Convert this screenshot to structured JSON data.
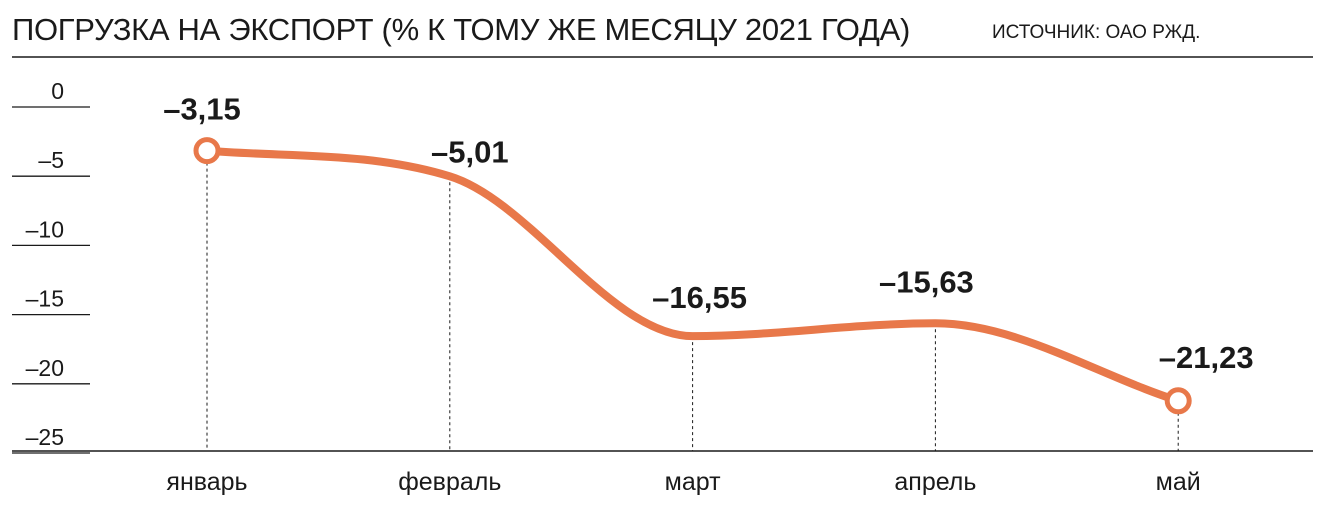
{
  "chart_data": {
    "type": "line",
    "title": "ПОГРУЗКА НА ЭКСПОРТ (% К ТОМУ ЖЕ МЕСЯЦУ 2021 ГОДА)",
    "source": "ИСТОЧНИК: ОАО РЖД.",
    "xlabel": "",
    "ylabel": "",
    "categories": [
      "январь",
      "февраль",
      "март",
      "апрель",
      "май"
    ],
    "values": [
      -3.15,
      -5.01,
      -16.55,
      -15.63,
      -21.23
    ],
    "value_labels": [
      "–3,15",
      "–5,01",
      "–16,55",
      "–15,63",
      "–21,23"
    ],
    "ylim": [
      -25,
      0
    ],
    "yticks": [
      0,
      -5,
      -10,
      -15,
      -20,
      -25
    ],
    "ytick_labels": [
      "0",
      "–5",
      "–10",
      "–15",
      "–20",
      "–25"
    ],
    "grid": false,
    "legend": "none",
    "colors": {
      "line": "#E8784A",
      "text": "#1a1a1a",
      "axis": "#1a1a1a",
      "marker_fill": "#ffffff"
    }
  }
}
